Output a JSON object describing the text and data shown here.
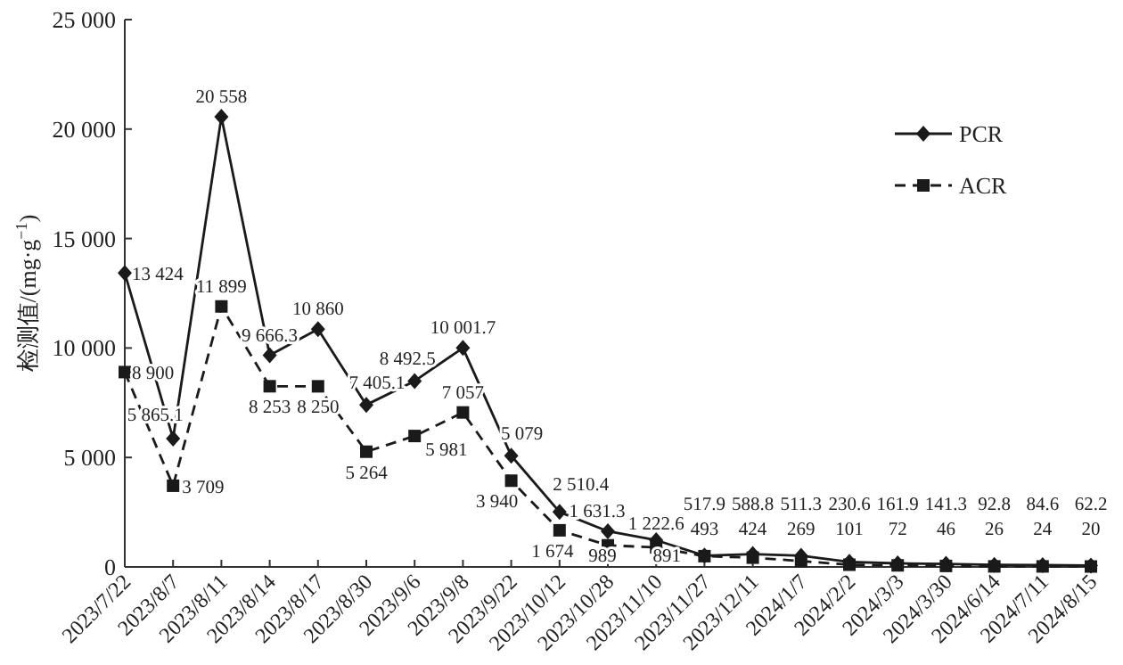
{
  "chart_data": {
    "type": "line",
    "ylabel": "检测值/(mg·g$^{−1}$)",
    "categories": [
      "2023/7/22",
      "2023/8/7",
      "2023/8/11",
      "2023/8/14",
      "2023/8/17",
      "2023/8/30",
      "2023/9/6",
      "2023/9/8",
      "2023/9/22",
      "2023/10/12",
      "2023/10/28",
      "2023/11/10",
      "2023/11/27",
      "2023/12/11",
      "2024/1/7",
      "2024/2/2",
      "2024/3/3",
      "2024/3/30",
      "2024/6/14",
      "2024/7/11",
      "2024/8/15"
    ],
    "series": [
      {
        "name": "PCR",
        "color": "#1a1a1a",
        "marker": "diamond",
        "line_style": "solid",
        "values": [
          13424,
          5865.1,
          20558,
          9666.3,
          10860,
          7405.1,
          8492.5,
          10001.7,
          5079,
          2510.4,
          1631.3,
          1222.6,
          517.9,
          588.8,
          511.3,
          230.6,
          161.9,
          141.3,
          92.8,
          84.6,
          62.2
        ],
        "value_labels": [
          "13 424",
          "5 865.1",
          "20 558",
          "9 666.3",
          "10 860",
          "7 405.1",
          "8 492.5",
          "10 001.7",
          "5 079",
          "2 510.4",
          "1 631.3",
          "1 222.6",
          "517.9",
          "588.8",
          "511.3",
          "230.6",
          "161.9",
          "141.3",
          "92.8",
          "84.6",
          "62.2"
        ]
      },
      {
        "name": "ACR",
        "color": "#1a1a1a",
        "marker": "square",
        "line_style": "dashed",
        "values": [
          8900,
          3709,
          11899,
          8253,
          8250,
          5264,
          5981,
          7057,
          3940,
          1674,
          989,
          891,
          493,
          424,
          269,
          101,
          72,
          46,
          26,
          24,
          20
        ],
        "value_labels": [
          "8 900",
          "3 709",
          "11 899",
          "8 253",
          "8 250",
          "5 264",
          "5 981",
          "7 057",
          "3 940",
          "1 674",
          "989",
          "891",
          "493",
          "424",
          "269",
          "101",
          "72",
          "46",
          "26",
          "24",
          "20"
        ]
      }
    ],
    "ylim": [
      0,
      25000
    ],
    "yticks": [
      0,
      {
        "value": 5000,
        "label": "5 000"
      },
      {
        "value": 10000,
        "label": "10 000"
      },
      {
        "value": 15000,
        "label": "15 000"
      },
      {
        "value": 20000,
        "label": "20 000"
      },
      {
        "value": 25000,
        "label": "25 000"
      }
    ],
    "grid": false,
    "legend": "top right"
  }
}
